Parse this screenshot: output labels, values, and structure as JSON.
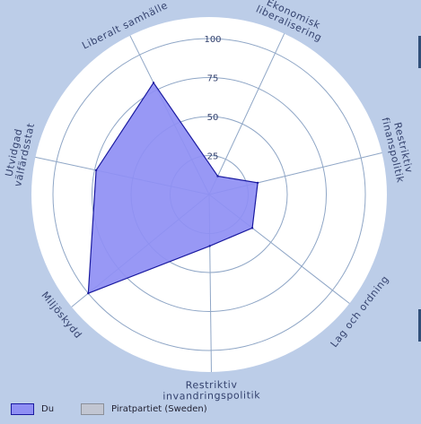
{
  "chart_data": {
    "type": "radar",
    "axes": [
      "Ekonomisk liberalisering",
      "Restriktiv finanspolitik",
      "Lag och ordning",
      "Restriktiv invandringspolitik",
      "Miljöskydd",
      "Utvidgad välfärdsstat",
      "Liberalt samhälle"
    ],
    "axis_label_lines": [
      [
        "Ekonomisk",
        "liberalisering"
      ],
      [
        "Restriktiv",
        "finanspolitik"
      ],
      [
        "Lag och ordning"
      ],
      [
        "Restriktiv",
        "invandringspolitik"
      ],
      [
        "Miljöskydd"
      ],
      [
        "Utvidgad",
        "välfärdsstat"
      ],
      [
        "Liberalt samhälle"
      ]
    ],
    "rlim": [
      0,
      100
    ],
    "ticks": [
      "25",
      "50",
      "75",
      "100"
    ],
    "tick_values": [
      25,
      50,
      75,
      100
    ],
    "series": [
      {
        "name": "Du",
        "values": [
          13,
          32,
          35,
          33,
          100,
          74,
          80
        ],
        "fill": "#8f8ff4",
        "stroke": "#1a1aa0"
      },
      {
        "name": "Piratpartiet (Sweden)",
        "values": [],
        "fill": "#c2c6d2",
        "stroke": "#8a8f99"
      }
    ]
  },
  "colors": {
    "background": "#bccde8",
    "plot_area": "#ffffff",
    "grid": "#8fa6c6",
    "label_text": "#34426e"
  }
}
